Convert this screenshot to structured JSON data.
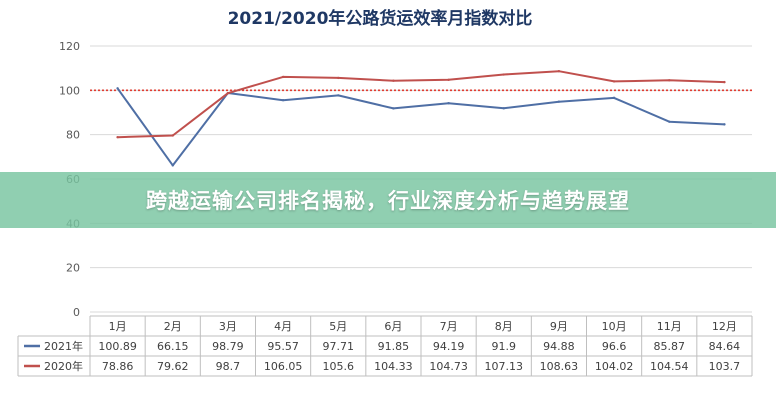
{
  "banner": {
    "headline": "跨越运输公司排名揭秘，行业深度分析与趋势展望"
  },
  "chart_data": {
    "type": "line",
    "title": "2021/2020年公路货运效率月指数对比",
    "categories": [
      "1月",
      "2月",
      "3月",
      "4月",
      "5月",
      "6月",
      "7月",
      "8月",
      "9月",
      "10月",
      "11月",
      "12月"
    ],
    "series": [
      {
        "name": "2021年",
        "color": "#4f6fa5",
        "values": [
          100.89,
          66.15,
          98.79,
          95.57,
          97.71,
          91.85,
          94.19,
          91.9,
          94.88,
          96.6,
          85.87,
          84.64
        ],
        "labels": [
          "100.89",
          "66.15",
          "98.79",
          "95.57",
          "97.71",
          "91.85",
          "94.19",
          "91.9",
          "94.88",
          "96.6",
          "85.87",
          "84.64"
        ]
      },
      {
        "name": "2020年",
        "color": "#c0504d",
        "values": [
          78.86,
          79.62,
          98.7,
          106.05,
          105.6,
          104.33,
          104.73,
          107.13,
          108.63,
          104.02,
          104.54,
          103.7
        ],
        "labels": [
          "78.86",
          "79.62",
          "98.7",
          "106.05",
          "105.6",
          "104.33",
          "104.73",
          "107.13",
          "108.63",
          "104.02",
          "104.54",
          "103.7"
        ]
      }
    ],
    "reference_line": {
      "value": 100,
      "color": "#e03c31",
      "style": "dotted"
    },
    "ylim": [
      0,
      120
    ],
    "yticks": [
      "0",
      "20",
      "40",
      "60",
      "80",
      "100",
      "120"
    ],
    "grid": true,
    "legend": "data-table-left"
  }
}
